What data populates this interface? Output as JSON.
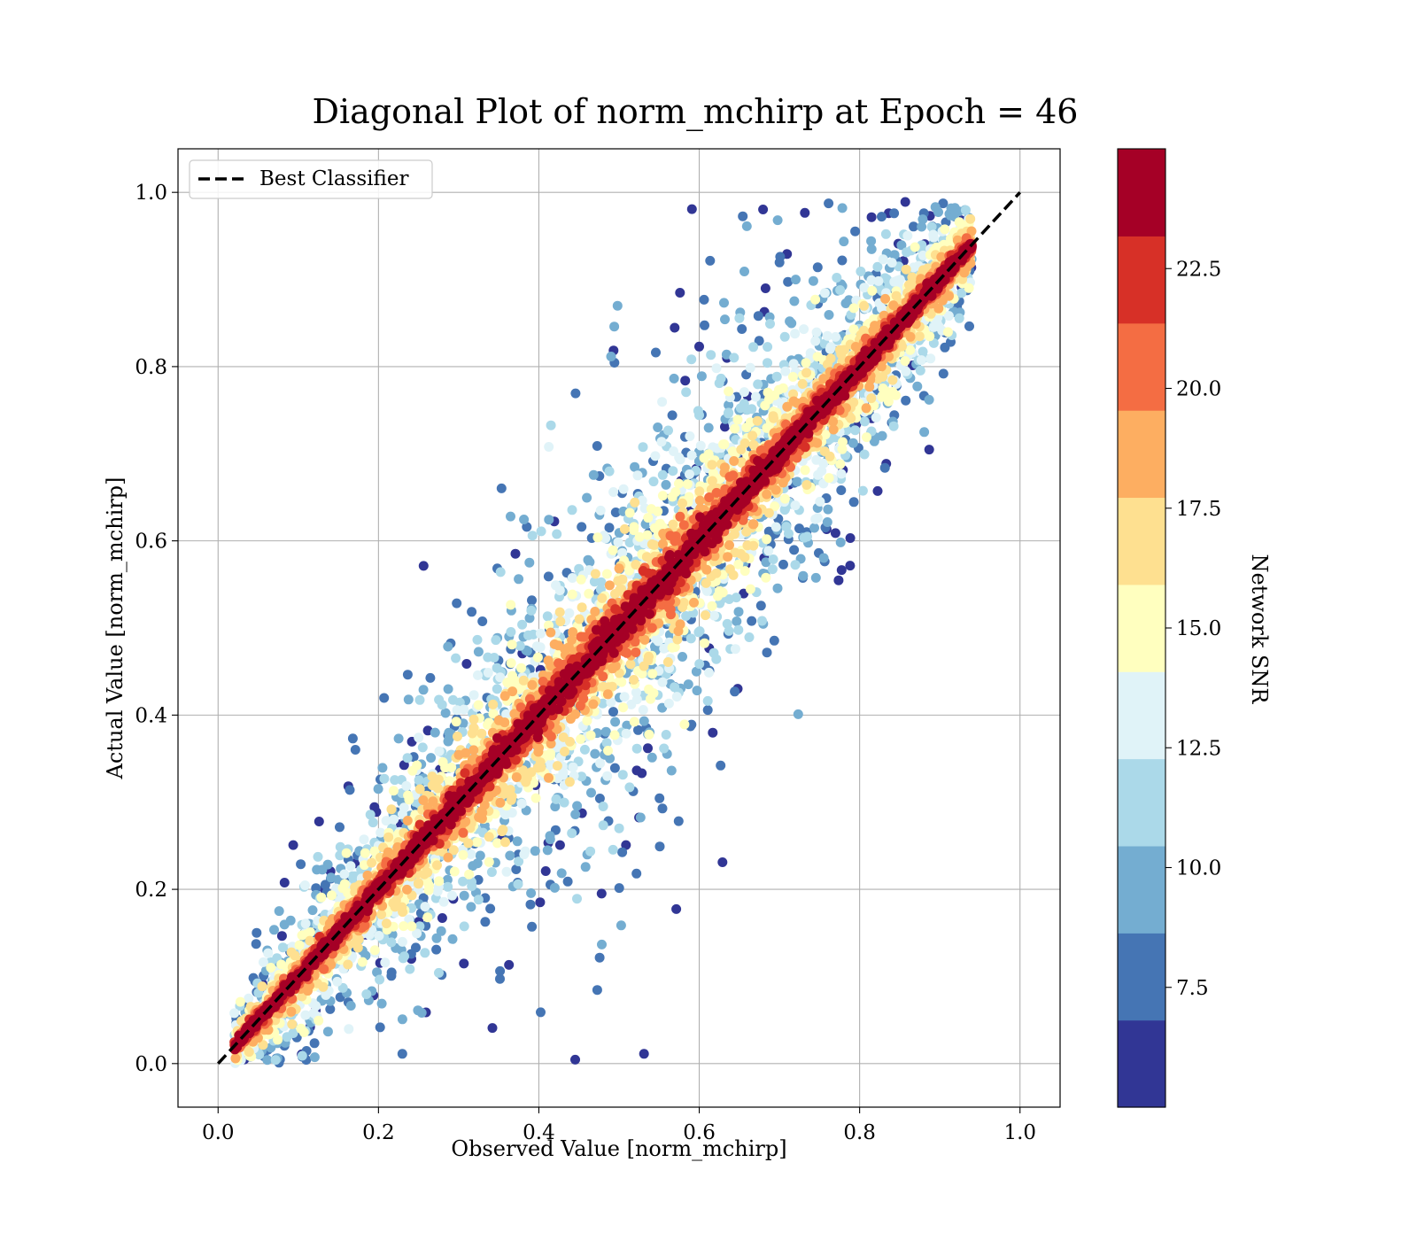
{
  "chart_data": {
    "type": "scatter",
    "title": "Diagonal Plot of norm_mchirp at Epoch = 46",
    "xlabel": "Observed Value [norm_mchirp]",
    "ylabel": "Actual Value [norm_mchirp]",
    "xlim": [
      -0.05,
      1.05
    ],
    "ylim": [
      -0.05,
      1.05
    ],
    "xticks": [
      0.0,
      0.2,
      0.4,
      0.6,
      0.8,
      1.0
    ],
    "xtick_labels": [
      "0.0",
      "0.2",
      "0.4",
      "0.6",
      "0.8",
      "1.0"
    ],
    "yticks": [
      0.0,
      0.2,
      0.4,
      0.6,
      0.8,
      1.0
    ],
    "ytick_labels": [
      "0.0",
      "0.2",
      "0.4",
      "0.6",
      "0.8",
      "1.0"
    ],
    "grid": true,
    "legend": {
      "placement": "upper-left",
      "entries": [
        {
          "label": "Best Classifier",
          "style": "dashed",
          "color": "#000000"
        }
      ]
    },
    "reference_line": {
      "name": "Best Classifier",
      "x": [
        0.0,
        1.0
      ],
      "y": [
        0.0,
        1.0
      ]
    },
    "colorbar": {
      "label": "Network SNR",
      "range": [
        5.0,
        25.0
      ],
      "ticks": [
        7.5,
        10.0,
        12.5,
        15.0,
        17.5,
        20.0,
        22.5
      ],
      "tick_labels": [
        "7.5",
        "10.0",
        "12.5",
        "15.0",
        "17.5",
        "20.0",
        "22.5"
      ],
      "colors": [
        "#313695",
        "#4575b4",
        "#74add1",
        "#abd9e9",
        "#e0f3f8",
        "#ffffbf",
        "#fee090",
        "#fdae61",
        "#f46d43",
        "#d73027",
        "#a50026"
      ]
    },
    "description_of_points": "Thousands of points clustered around the diagonal y = x; high SNR (dark red) tightly along the line, low SNR (dark blue) widely scattered.",
    "series": [
      {
        "name": "points",
        "n": 12000,
        "x_range": [
          0.02,
          0.94
        ],
        "y_range": [
          0.0,
          0.99
        ]
      }
    ]
  }
}
